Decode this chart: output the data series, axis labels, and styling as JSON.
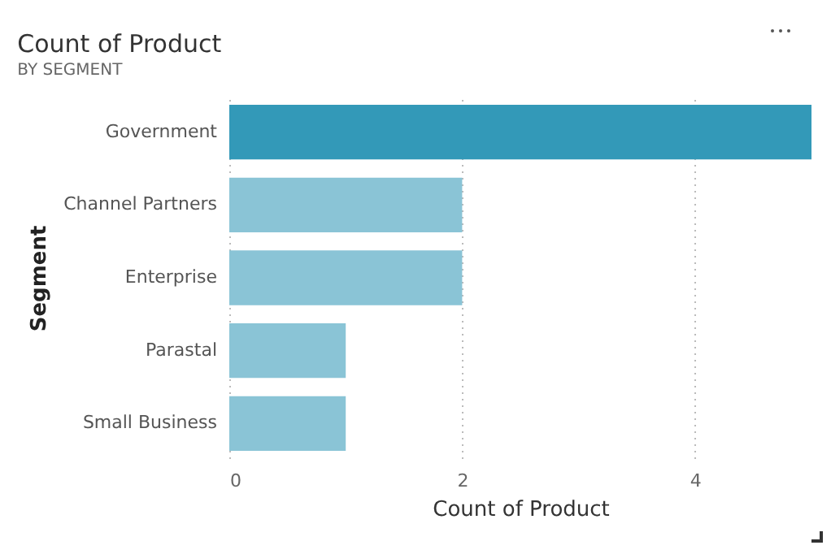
{
  "chart_data": {
    "type": "bar",
    "orientation": "horizontal",
    "title": "Count of Product",
    "subtitle": "BY SEGMENT",
    "xlabel": "Count of Product",
    "ylabel": "Segment",
    "categories": [
      "Government",
      "Channel Partners",
      "Enterprise",
      "Parastal",
      "Small Business"
    ],
    "values": [
      5,
      2,
      2,
      1,
      1
    ],
    "colors": [
      "#3399b8",
      "#8ac4d6",
      "#8ac4d6",
      "#8ac4d6",
      "#8ac4d6"
    ],
    "xlim": [
      0,
      5
    ],
    "xticks": [
      0,
      2,
      4
    ],
    "grid": "x"
  }
}
